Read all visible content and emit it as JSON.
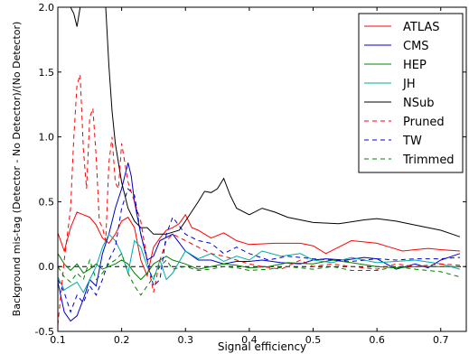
{
  "chart_data": {
    "type": "line",
    "title": "",
    "xlabel": "Signal efficiency",
    "ylabel": "Background mis-tag (Detector - No Detector)/(No Detector)",
    "xlim": [
      0.1,
      0.74
    ],
    "ylim": [
      -0.5,
      2.0
    ],
    "x_ticks": [
      0.1,
      0.2,
      0.3,
      0.4,
      0.5,
      0.6,
      0.7
    ],
    "x_tick_labels": [
      "0.1",
      "0.2",
      "0.3",
      "0.4",
      "0.5",
      "0.6",
      "0.7"
    ],
    "y_ticks": [
      -0.5,
      0.0,
      0.5,
      1.0,
      1.5,
      2.0
    ],
    "y_tick_labels": [
      "-0.5",
      "0.0",
      "0.5",
      "1.0",
      "1.5",
      "2.0"
    ],
    "grid": false,
    "legend_position": "top-right",
    "reference_line": {
      "y": 0.0,
      "color": "#000000",
      "style": "dashed"
    },
    "series": [
      {
        "name": "ATLAS",
        "color": "#ff0000",
        "style": "solid",
        "x": [
          0.1,
          0.11,
          0.12,
          0.13,
          0.14,
          0.15,
          0.16,
          0.17,
          0.18,
          0.19,
          0.2,
          0.21,
          0.22,
          0.23,
          0.24,
          0.25,
          0.26,
          0.27,
          0.28,
          0.29,
          0.3,
          0.31,
          0.32,
          0.34,
          0.36,
          0.38,
          0.4,
          0.44,
          0.48,
          0.5,
          0.52,
          0.54,
          0.56,
          0.58,
          0.6,
          0.62,
          0.64,
          0.66,
          0.68,
          0.7,
          0.73
        ],
        "y": [
          0.26,
          0.12,
          0.3,
          0.42,
          0.4,
          0.38,
          0.32,
          0.22,
          0.18,
          0.25,
          0.35,
          0.38,
          0.3,
          0.05,
          -0.07,
          0.15,
          0.22,
          0.28,
          0.3,
          0.33,
          0.4,
          0.3,
          0.28,
          0.22,
          0.26,
          0.2,
          0.17,
          0.18,
          0.18,
          0.16,
          0.1,
          0.15,
          0.2,
          0.19,
          0.18,
          0.15,
          0.12,
          0.13,
          0.14,
          0.13,
          0.12
        ]
      },
      {
        "name": "CMS",
        "color": "#0000cc",
        "style": "solid",
        "x": [
          0.1,
          0.11,
          0.12,
          0.13,
          0.14,
          0.15,
          0.16,
          0.17,
          0.18,
          0.19,
          0.2,
          0.21,
          0.215,
          0.22,
          0.23,
          0.24,
          0.25,
          0.26,
          0.28,
          0.3,
          0.32,
          0.34,
          0.36,
          0.38,
          0.4,
          0.42,
          0.45,
          0.48,
          0.5,
          0.52,
          0.55,
          0.58,
          0.6,
          0.63,
          0.66,
          0.68,
          0.7,
          0.73
        ],
        "y": [
          -0.12,
          -0.35,
          -0.42,
          -0.38,
          -0.25,
          -0.1,
          -0.15,
          0.1,
          0.25,
          0.45,
          0.6,
          0.8,
          0.7,
          0.5,
          0.25,
          0.05,
          0.08,
          0.2,
          0.25,
          0.12,
          0.05,
          0.05,
          0.02,
          0.04,
          0.04,
          0.05,
          0.03,
          0.02,
          0.05,
          0.06,
          0.05,
          0.07,
          0.06,
          -0.02,
          0.02,
          -0.01,
          0.05,
          0.1
        ]
      },
      {
        "name": "HEP",
        "color": "#008000",
        "style": "solid",
        "x": [
          0.1,
          0.11,
          0.12,
          0.13,
          0.14,
          0.15,
          0.16,
          0.17,
          0.18,
          0.19,
          0.2,
          0.21,
          0.22,
          0.23,
          0.24,
          0.25,
          0.26,
          0.27,
          0.28,
          0.3,
          0.32,
          0.34,
          0.36,
          0.38,
          0.4,
          0.43,
          0.46,
          0.5,
          0.53,
          0.56,
          0.6,
          0.63,
          0.66,
          0.7,
          0.73
        ],
        "y": [
          0.1,
          0.02,
          -0.03,
          0.02,
          -0.05,
          -0.02,
          0.02,
          -0.02,
          0.0,
          0.02,
          0.05,
          0.02,
          -0.05,
          -0.1,
          -0.05,
          0.02,
          0.05,
          0.08,
          0.05,
          0.02,
          -0.02,
          0.0,
          0.02,
          0.01,
          -0.01,
          0.0,
          0.03,
          0.02,
          0.05,
          0.03,
          0.0,
          -0.01,
          0.0,
          0.0,
          0.0
        ]
      },
      {
        "name": "JH",
        "color": "#00aaaa",
        "style": "solid",
        "x": [
          0.1,
          0.11,
          0.12,
          0.13,
          0.14,
          0.15,
          0.16,
          0.17,
          0.18,
          0.19,
          0.2,
          0.21,
          0.22,
          0.23,
          0.24,
          0.25,
          0.26,
          0.27,
          0.28,
          0.3,
          0.32,
          0.34,
          0.36,
          0.38,
          0.4,
          0.42,
          0.45,
          0.48,
          0.5,
          0.53,
          0.56,
          0.6,
          0.63,
          0.66,
          0.7,
          0.73
        ],
        "y": [
          -0.08,
          -0.18,
          -0.15,
          -0.12,
          -0.2,
          -0.1,
          0.0,
          0.15,
          0.25,
          0.2,
          0.1,
          -0.05,
          0.2,
          0.15,
          0.0,
          -0.1,
          0.05,
          -0.1,
          -0.05,
          0.12,
          0.06,
          0.1,
          0.04,
          0.08,
          0.05,
          0.12,
          0.08,
          0.1,
          0.05,
          0.03,
          0.07,
          0.03,
          0.04,
          0.05,
          0.02,
          -0.02
        ]
      },
      {
        "name": "NSub",
        "color": "#000000",
        "style": "solid",
        "x": [
          0.12,
          0.125,
          0.13,
          0.135,
          0.14,
          0.16,
          0.17,
          0.175,
          0.18,
          0.185,
          0.19,
          0.2,
          0.21,
          0.22,
          0.23,
          0.24,
          0.25,
          0.27,
          0.29,
          0.3,
          0.32,
          0.33,
          0.34,
          0.35,
          0.36,
          0.37,
          0.38,
          0.4,
          0.42,
          0.44,
          0.46,
          0.5,
          0.54,
          0.58,
          0.6,
          0.63,
          0.66,
          0.7,
          0.73
        ],
        "y": [
          2.0,
          1.95,
          1.85,
          2.0,
          2.0,
          2.0,
          2.0,
          2.0,
          1.55,
          1.2,
          0.95,
          0.65,
          0.45,
          0.35,
          0.3,
          0.3,
          0.25,
          0.25,
          0.28,
          0.35,
          0.5,
          0.58,
          0.57,
          0.6,
          0.68,
          0.55,
          0.45,
          0.4,
          0.45,
          0.42,
          0.38,
          0.34,
          0.33,
          0.36,
          0.37,
          0.35,
          0.32,
          0.28,
          0.23
        ]
      },
      {
        "name": "Pruned",
        "color": "#ff0000",
        "style": "dashed",
        "x": [
          0.1,
          0.11,
          0.12,
          0.125,
          0.13,
          0.135,
          0.14,
          0.145,
          0.15,
          0.155,
          0.16,
          0.165,
          0.17,
          0.175,
          0.18,
          0.185,
          0.19,
          0.195,
          0.2,
          0.21,
          0.22,
          0.23,
          0.24,
          0.25,
          0.26,
          0.27,
          0.28,
          0.3,
          0.32,
          0.34,
          0.36,
          0.38,
          0.4,
          0.42,
          0.45,
          0.48,
          0.5,
          0.53,
          0.56,
          0.6,
          0.63,
          0.66,
          0.7,
          0.73
        ],
        "y": [
          -0.45,
          0.05,
          0.45,
          1.0,
          1.4,
          1.48,
          0.9,
          0.6,
          1.15,
          1.22,
          0.85,
          0.35,
          0.3,
          0.2,
          0.8,
          1.0,
          0.65,
          0.6,
          0.95,
          0.65,
          0.5,
          0.35,
          0.05,
          -0.2,
          0.05,
          0.2,
          0.25,
          0.2,
          0.15,
          0.1,
          0.08,
          0.05,
          0.02,
          0.0,
          -0.02,
          0.05,
          0.0,
          0.02,
          0.0,
          -0.02,
          0.02,
          0.0,
          0.02,
          0.01
        ]
      },
      {
        "name": "TW",
        "color": "#0000cc",
        "style": "dashed",
        "x": [
          0.1,
          0.11,
          0.12,
          0.13,
          0.14,
          0.15,
          0.16,
          0.17,
          0.18,
          0.19,
          0.2,
          0.21,
          0.22,
          0.23,
          0.24,
          0.25,
          0.26,
          0.27,
          0.28,
          0.3,
          0.32,
          0.34,
          0.36,
          0.38,
          0.4,
          0.43,
          0.46,
          0.5,
          0.53,
          0.56,
          0.6,
          0.63,
          0.66,
          0.7,
          0.73
        ],
        "y": [
          -0.1,
          -0.2,
          -0.35,
          -0.22,
          -0.28,
          -0.15,
          -0.22,
          -0.1,
          0.05,
          0.15,
          0.45,
          0.6,
          0.55,
          0.25,
          0.05,
          -0.15,
          -0.1,
          0.25,
          0.38,
          0.25,
          0.2,
          0.18,
          0.1,
          0.15,
          0.1,
          0.05,
          0.08,
          0.06,
          0.05,
          0.04,
          0.06,
          0.05,
          0.06,
          0.06,
          0.07
        ]
      },
      {
        "name": "Trimmed",
        "color": "#008000",
        "style": "dashed",
        "x": [
          0.1,
          0.11,
          0.12,
          0.13,
          0.14,
          0.15,
          0.16,
          0.17,
          0.18,
          0.19,
          0.2,
          0.21,
          0.22,
          0.23,
          0.24,
          0.25,
          0.26,
          0.27,
          0.28,
          0.3,
          0.32,
          0.34,
          0.36,
          0.38,
          0.4,
          0.43,
          0.46,
          0.5,
          0.53,
          0.56,
          0.6,
          0.63,
          0.66,
          0.7,
          0.73
        ],
        "y": [
          0.0,
          -0.08,
          -0.12,
          -0.05,
          -0.1,
          0.05,
          -0.1,
          -0.05,
          0.02,
          0.05,
          0.1,
          -0.05,
          -0.15,
          -0.22,
          -0.15,
          -0.08,
          0.0,
          0.05,
          -0.02,
          0.0,
          -0.03,
          -0.02,
          0.0,
          -0.01,
          -0.03,
          -0.02,
          0.0,
          -0.02,
          0.0,
          -0.03,
          -0.03,
          0.0,
          -0.02,
          -0.04,
          -0.08
        ]
      }
    ]
  }
}
